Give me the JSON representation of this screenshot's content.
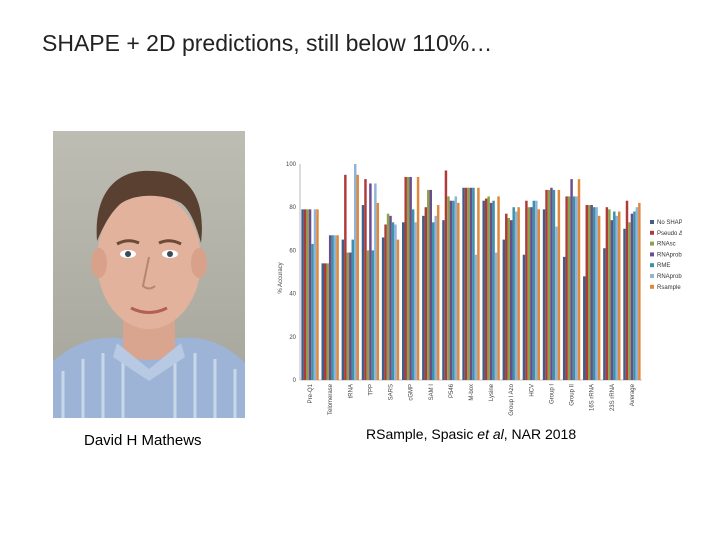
{
  "slide": {
    "title": "SHAPE + 2D predictions, still below 110%…"
  },
  "photo_caption": "David H Mathews",
  "citation": {
    "prefix": "RSample, Spasic ",
    "etal": "et al",
    "suffix": ", NAR 2018"
  },
  "chart_data": {
    "type": "bar",
    "ylabel": "% Accuracy",
    "ylim": [
      0,
      100
    ],
    "yticks": [
      0,
      20,
      40,
      60,
      80,
      100
    ],
    "grid": false,
    "legend_placement": "right",
    "categories": [
      "Pre-Q1",
      "Telomerase",
      "tRNA",
      "TPP",
      "SARS",
      "cGMP",
      "SAM I",
      "P546",
      "M-box",
      "Lysine",
      "Group I Azo",
      "HCV",
      "Group I",
      "Group II",
      "16S rRNA",
      "23S rRNA",
      "Average"
    ],
    "series": [
      {
        "name": "No SHAPE",
        "color": "#3f5f8a",
        "values": [
          79,
          54,
          65,
          81,
          66,
          73,
          76,
          74,
          89,
          83,
          65,
          58,
          79,
          57,
          48,
          61,
          70
        ]
      },
      {
        "name": "Pseudo ΔG",
        "color": "#b03a3a",
        "values": [
          79,
          54,
          95,
          93,
          72,
          94,
          80,
          97,
          89,
          84,
          77,
          83,
          88,
          85,
          81,
          80,
          83
        ]
      },
      {
        "name": "RNAsc",
        "color": "#8aa34a",
        "values": [
          79,
          54,
          59,
          60,
          77,
          94,
          88,
          85,
          89,
          85,
          75,
          80,
          88,
          85,
          81,
          79,
          73
        ]
      },
      {
        "name": "RNAprobing",
        "color": "#6b4d8f",
        "values": [
          79,
          67,
          59,
          91,
          76,
          94,
          88,
          83,
          89,
          82,
          74,
          80,
          89,
          93,
          81,
          74,
          77
        ]
      },
      {
        "name": "RME",
        "color": "#3b93a8",
        "values": [
          63,
          67,
          65,
          60,
          73,
          79,
          73,
          83,
          89,
          83,
          80,
          83,
          88,
          85,
          80,
          78,
          78
        ]
      },
      {
        "name": "RNAprob",
        "color": "#8fb3d9",
        "values": [
          79,
          67,
          100,
          91,
          72,
          73,
          76,
          85,
          58,
          59,
          78,
          83,
          71,
          85,
          80,
          76,
          80
        ]
      },
      {
        "name": "Rsample",
        "color": "#e0873a",
        "values": [
          79,
          67,
          95,
          82,
          65,
          94,
          81,
          82,
          89,
          85,
          80,
          79,
          88,
          93,
          76,
          78,
          82
        ]
      }
    ]
  },
  "legend_labels": {
    "s0": "No SHAPE",
    "s1": "Pseudo ΔG",
    "s2": "RNAsc",
    "s3": "RNAprobing",
    "s4": "RME",
    "s5": "RNAprob",
    "s6": "Rsample"
  }
}
